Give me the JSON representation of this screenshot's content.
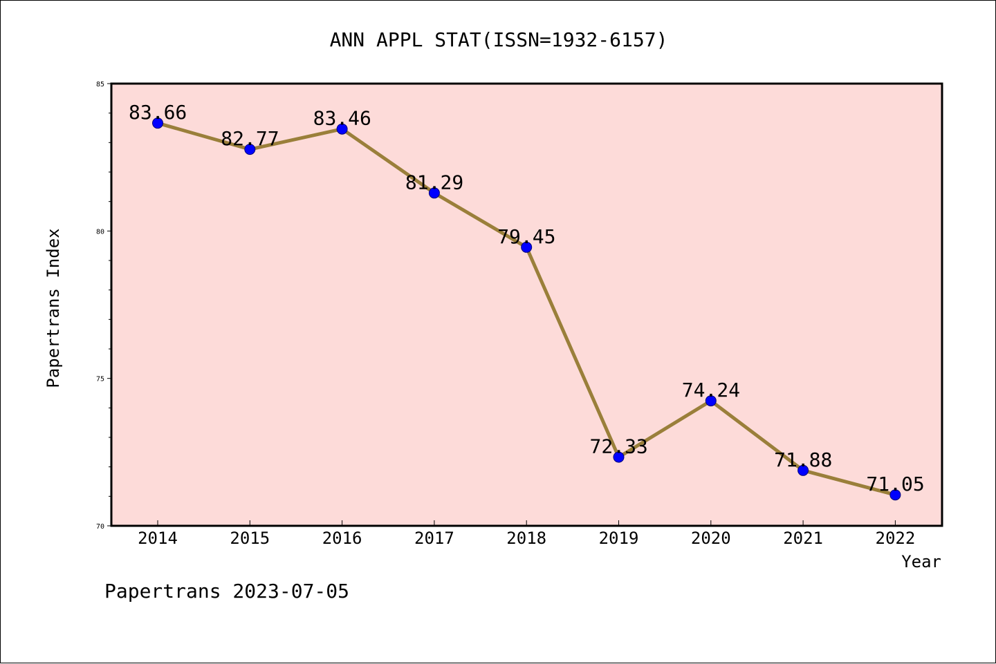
{
  "chart_data": {
    "type": "line",
    "title": "ANN APPL STAT(ISSN=1932-6157)",
    "xlabel": "Year",
    "ylabel": "Papertrans Index",
    "categories": [
      "2014",
      "2015",
      "2016",
      "2017",
      "2018",
      "2019",
      "2020",
      "2021",
      "2022"
    ],
    "values": [
      83.66,
      82.77,
      83.46,
      81.29,
      79.45,
      72.33,
      74.24,
      71.88,
      71.05
    ],
    "data_labels": [
      "83.66",
      "82.77",
      "83.46",
      "81.29",
      "79.45",
      "72.33",
      "74.24",
      "71.88",
      "71.05"
    ],
    "ylim": [
      70,
      85
    ],
    "yticks": [
      "70",
      "75",
      "80",
      "85"
    ],
    "grid": false,
    "colors": {
      "plot_background": "#fddbd9",
      "line": "#9a7f3a",
      "marker": "#0000ff",
      "axis": "#000000"
    }
  },
  "footer": "Papertrans 2023-07-05"
}
